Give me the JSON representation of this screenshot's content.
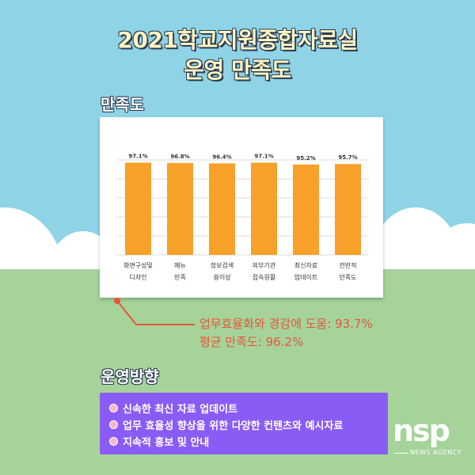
{
  "title": {
    "line1": "2021학교지원종합자료실",
    "line2": "운영 만족도"
  },
  "sections": {
    "satisfaction_label": "만족도",
    "direction_label": "운영방향"
  },
  "callout": {
    "line1": "업무효율화와 경감에 도움: 93.7%",
    "line2": "평균 만족도: 96.2%"
  },
  "direction_items": [
    "신속한 최신 자료 업데이트",
    "업무  효율성 향상을 위한 다양한 컨텐츠와 예시자료",
    "지속적 홍보 및 안내"
  ],
  "logo": {
    "mark": "nsp",
    "sub": "NEWS AGENCY"
  },
  "colors": {
    "background": "#8fd3e6",
    "bar": "#f7a12a",
    "callout": "#e8553a",
    "direction_box": "#8a5cf6"
  },
  "chart_data": {
    "type": "bar",
    "categories": [
      [
        "화면구성및",
        "디자인"
      ],
      [
        "메뉴",
        "만족"
      ],
      [
        "정보검색",
        "용이성"
      ],
      [
        "외부기관",
        "접속원활"
      ],
      [
        "최신자료",
        "업데이트"
      ],
      [
        "전반적",
        "만족도"
      ]
    ],
    "values": [
      97.1,
      96.8,
      96.4,
      97.1,
      95.2,
      95.7
    ],
    "value_labels": [
      "97.1%",
      "96.8%",
      "96.4%",
      "97.1%",
      "95.2%",
      "95.7%"
    ],
    "ylim": [
      0,
      100
    ],
    "grid": true,
    "title": "",
    "xlabel": "",
    "ylabel": ""
  }
}
